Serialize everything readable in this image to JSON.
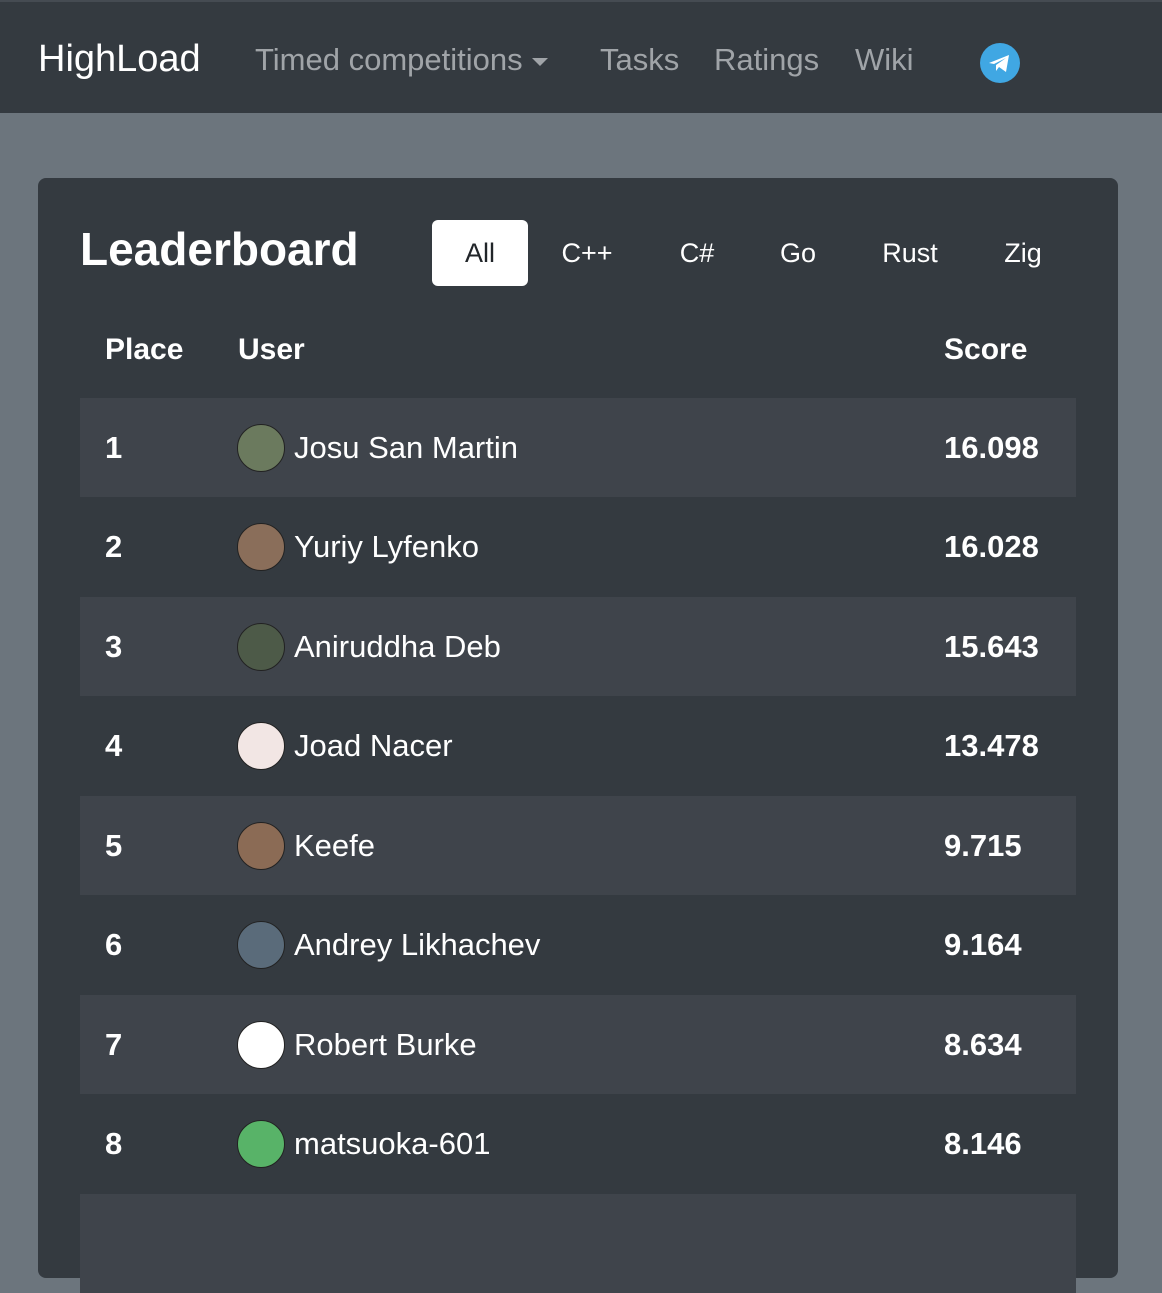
{
  "navbar": {
    "brand": "HighLoad",
    "links": [
      "Timed competitions",
      "Tasks",
      "Ratings",
      "Wiki"
    ]
  },
  "leaderboard": {
    "title": "Leaderboard",
    "tabs": [
      "All",
      "C++",
      "C#",
      "Go",
      "Rust",
      "Zig"
    ],
    "table": {
      "headers": [
        "Place",
        "User",
        "Score"
      ],
      "rows": [
        [
          "1",
          "Josu San Martin",
          "16.098"
        ],
        [
          "2",
          "Yuriy Lyfenko",
          "16.028"
        ],
        [
          "3",
          "Aniruddha Deb",
          "15.643"
        ],
        [
          "4",
          "Joad Nacer",
          "13.478"
        ],
        [
          "5",
          "Keefe",
          "9.715"
        ],
        [
          "6",
          "Andrey Likhachev",
          "9.164"
        ],
        [
          "7",
          "Robert Burke",
          "8.634"
        ],
        [
          "8",
          "matsuoka-601",
          "8.146"
        ]
      ]
    }
  }
}
